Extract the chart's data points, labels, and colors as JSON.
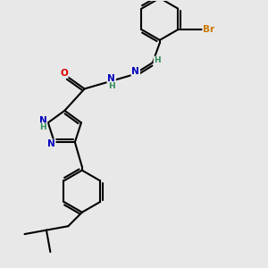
{
  "background_color": "#e8e8e8",
  "atom_colors": {
    "C": "#000000",
    "N": "#0000bb",
    "O": "#dd0000",
    "H": "#2e8b57",
    "Br": "#cc7700"
  },
  "bond_color": "#000000",
  "bond_width": 1.5,
  "dbo": 0.06,
  "figsize": [
    3.0,
    3.0
  ],
  "dpi": 100,
  "xlim": [
    -1.0,
    5.5
  ],
  "ylim": [
    -3.2,
    3.5
  ]
}
